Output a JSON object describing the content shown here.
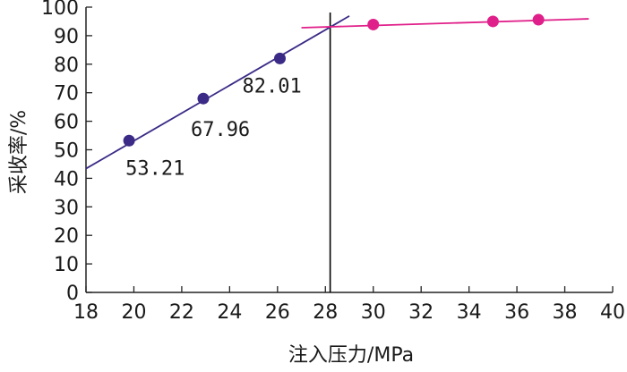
{
  "chart_data": {
    "type": "scatter",
    "xlabel": "注入压力/MPa",
    "ylabel": "采收率/%",
    "xlim": [
      18,
      40
    ],
    "ylim": [
      0,
      100
    ],
    "xticks": [
      18,
      20,
      22,
      24,
      26,
      28,
      30,
      32,
      34,
      36,
      38,
      40
    ],
    "yticks": [
      0,
      10,
      20,
      30,
      40,
      50,
      60,
      70,
      80,
      90,
      100
    ],
    "grid": false,
    "series": [
      {
        "color": "#3b2a86",
        "points": [
          {
            "x": 19.8,
            "y": 53.21,
            "label": "53.21"
          },
          {
            "x": 22.9,
            "y": 67.96,
            "label": "67.96"
          },
          {
            "x": 26.1,
            "y": 82.01,
            "label": "82.01"
          }
        ],
        "fit_line": {
          "x": [
            18,
            29
          ],
          "y": [
            43.4,
            96.9
          ]
        }
      },
      {
        "color": "#e0208a",
        "points": [
          {
            "x": 30.0,
            "y": 93.9
          },
          {
            "x": 35.0,
            "y": 95.0
          },
          {
            "x": 36.9,
            "y": 95.6
          }
        ],
        "fit_line": {
          "x": [
            27,
            39
          ],
          "y": [
            92.8,
            95.9
          ]
        }
      }
    ],
    "reference_lines": [
      {
        "orientation": "vertical",
        "x": 28.2,
        "color": "#000000"
      }
    ]
  }
}
